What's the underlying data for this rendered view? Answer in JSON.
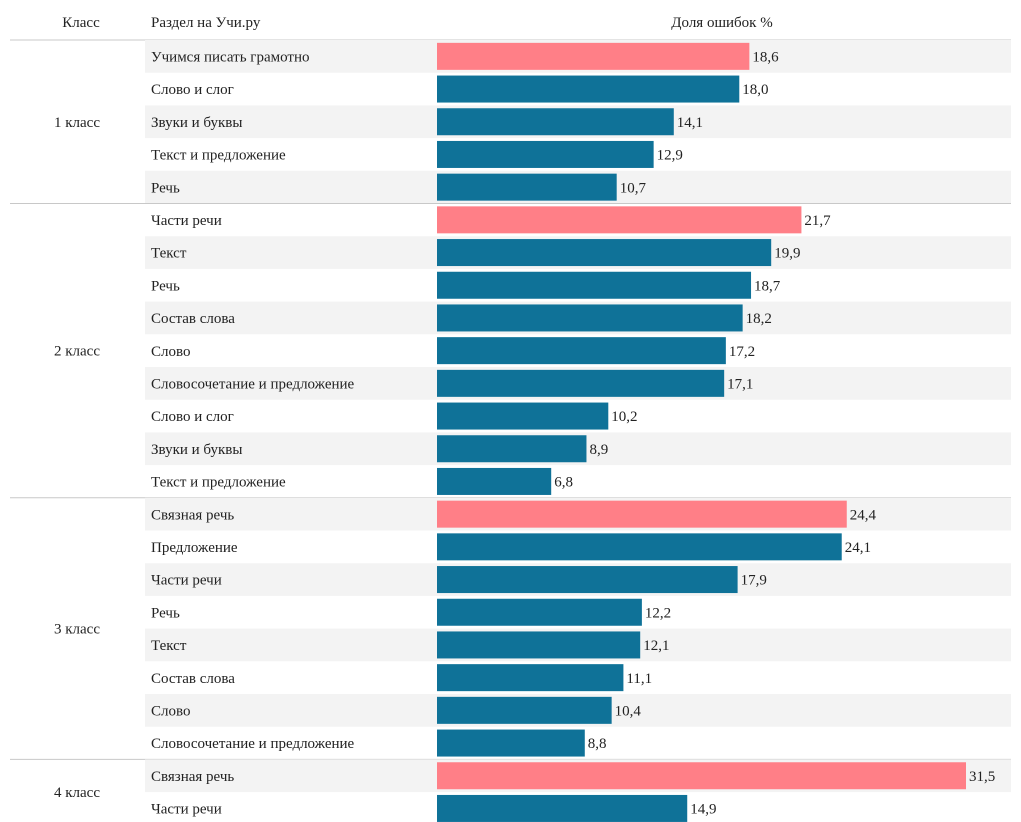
{
  "chart_data": {
    "type": "bar",
    "orientation": "horizontal",
    "grid": false,
    "highlight_color": "#ff7f87",
    "bar_color": "#0f7298",
    "headers": {
      "group": "Класс",
      "category": "Раздел на Учи.ру",
      "value": "Доля ошибок %"
    },
    "xlim": [
      0,
      31.5
    ],
    "groups": [
      {
        "name": "1 класс",
        "rows": [
          {
            "label": "Учимся писать грамотно",
            "value": 18.6,
            "value_label": "18,6",
            "highlight": true
          },
          {
            "label": "Слово и слог",
            "value": 18.0,
            "value_label": "18,0",
            "highlight": false
          },
          {
            "label": "Звуки и буквы",
            "value": 14.1,
            "value_label": "14,1",
            "highlight": false
          },
          {
            "label": "Текст и предложение",
            "value": 12.9,
            "value_label": "12,9",
            "highlight": false
          },
          {
            "label": "Речь",
            "value": 10.7,
            "value_label": "10,7",
            "highlight": false
          }
        ]
      },
      {
        "name": "2 класс",
        "rows": [
          {
            "label": "Части речи",
            "value": 21.7,
            "value_label": "21,7",
            "highlight": true
          },
          {
            "label": "Текст",
            "value": 19.9,
            "value_label": "19,9",
            "highlight": false
          },
          {
            "label": "Речь",
            "value": 18.7,
            "value_label": "18,7",
            "highlight": false
          },
          {
            "label": "Состав слова",
            "value": 18.2,
            "value_label": "18,2",
            "highlight": false
          },
          {
            "label": "Слово",
            "value": 17.2,
            "value_label": "17,2",
            "highlight": false
          },
          {
            "label": "Словосочетание и предложение",
            "value": 17.1,
            "value_label": "17,1",
            "highlight": false
          },
          {
            "label": "Слово и слог",
            "value": 10.2,
            "value_label": "10,2",
            "highlight": false
          },
          {
            "label": "Звуки и буквы",
            "value": 8.9,
            "value_label": "8,9",
            "highlight": false
          },
          {
            "label": "Текст и предложение",
            "value": 6.8,
            "value_label": "6,8",
            "highlight": false
          }
        ]
      },
      {
        "name": "3 класс",
        "rows": [
          {
            "label": "Связная речь",
            "value": 24.4,
            "value_label": "24,4",
            "highlight": true
          },
          {
            "label": "Предложение",
            "value": 24.1,
            "value_label": "24,1",
            "highlight": false
          },
          {
            "label": "Части речи",
            "value": 17.9,
            "value_label": "17,9",
            "highlight": false
          },
          {
            "label": "Речь",
            "value": 12.2,
            "value_label": "12,2",
            "highlight": false
          },
          {
            "label": "Текст",
            "value": 12.1,
            "value_label": "12,1",
            "highlight": false
          },
          {
            "label": "Состав слова",
            "value": 11.1,
            "value_label": "11,1",
            "highlight": false
          },
          {
            "label": "Слово",
            "value": 10.4,
            "value_label": "10,4",
            "highlight": false
          },
          {
            "label": "Словосочетание и предложение",
            "value": 8.8,
            "value_label": "8,8",
            "highlight": false
          }
        ]
      },
      {
        "name": "4 класс",
        "rows": [
          {
            "label": "Связная речь",
            "value": 31.5,
            "value_label": "31,5",
            "highlight": true
          },
          {
            "label": "Части речи",
            "value": 14.9,
            "value_label": "14,9",
            "highlight": false
          }
        ]
      }
    ]
  }
}
